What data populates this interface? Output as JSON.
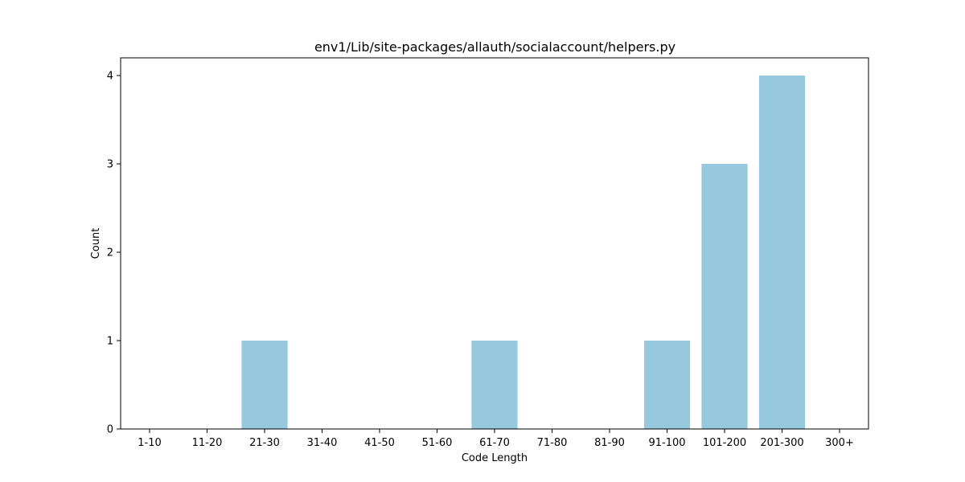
{
  "chart_data": {
    "type": "bar",
    "title": "env1/Lib/site-packages/allauth/socialaccount/helpers.py",
    "xlabel": "Code Length",
    "ylabel": "Count",
    "categories": [
      "1-10",
      "11-20",
      "21-30",
      "31-40",
      "41-50",
      "51-60",
      "61-70",
      "71-80",
      "81-90",
      "91-100",
      "101-200",
      "201-300",
      "300+"
    ],
    "values": [
      0,
      0,
      1,
      0,
      0,
      0,
      1,
      0,
      0,
      1,
      3,
      4,
      0
    ],
    "ylim": [
      0,
      4.2
    ],
    "yticks": [
      0,
      1,
      2,
      3,
      4
    ],
    "bar_color": "#96c9dd",
    "grid": false,
    "legend": "none"
  }
}
